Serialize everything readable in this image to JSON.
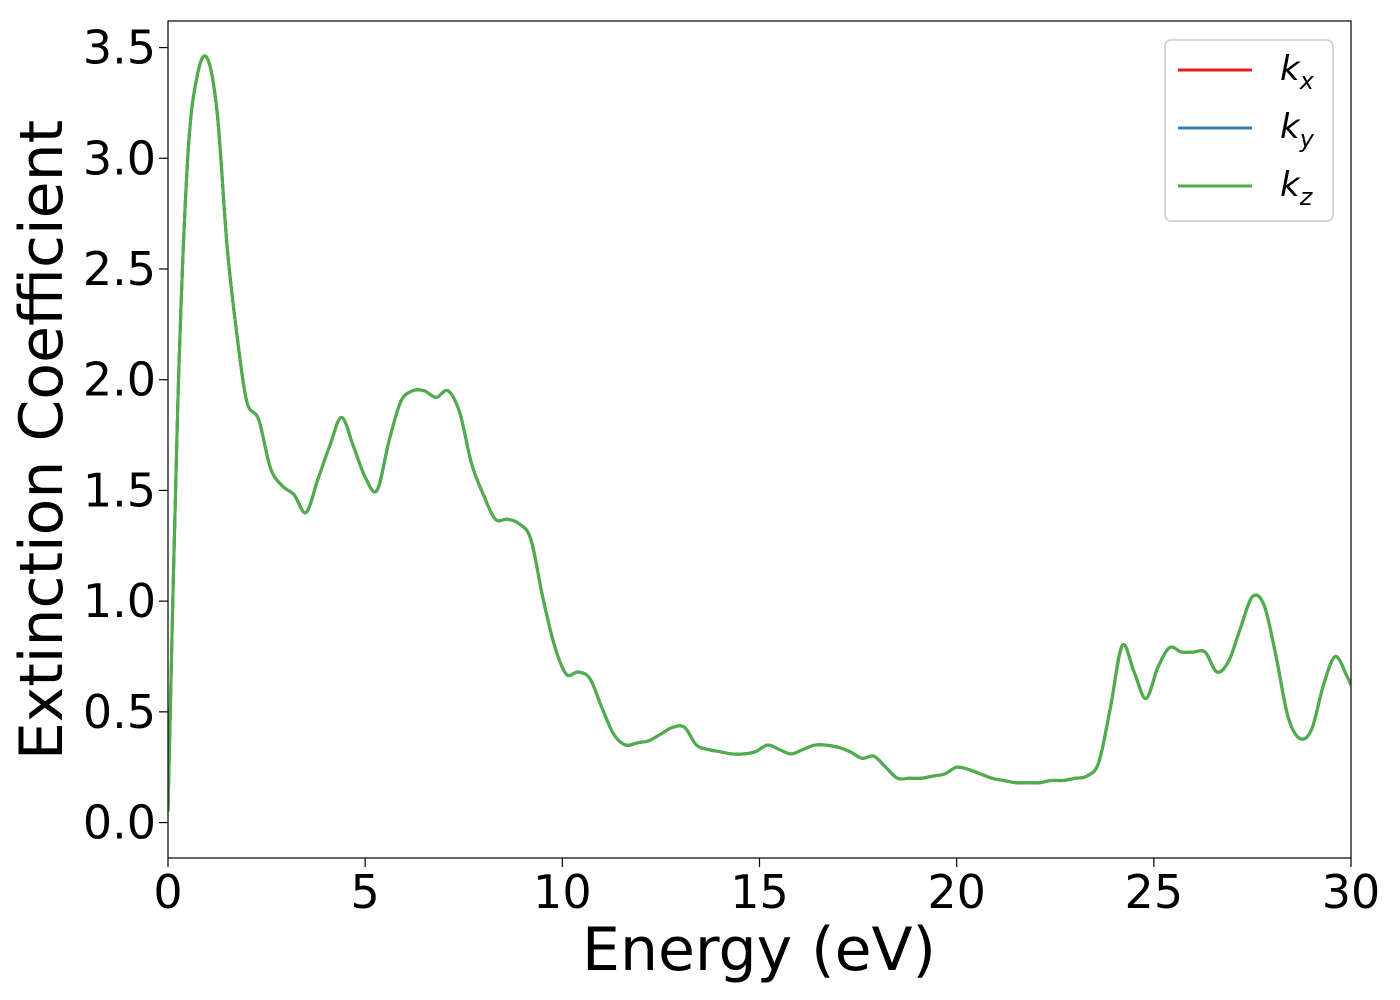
{
  "chart_data": {
    "type": "line",
    "xlabel": "Energy (eV)",
    "ylabel": "Extinction Coefficient",
    "xlim": [
      0,
      30
    ],
    "ylim": [
      -0.16,
      3.62
    ],
    "x_ticks": [
      "0",
      "5",
      "10",
      "15",
      "20",
      "25",
      "30"
    ],
    "y_ticks": [
      "0.0",
      "0.5",
      "1.0",
      "1.5",
      "2.0",
      "2.5",
      "3.0",
      "3.5"
    ],
    "grid": false,
    "legend_position": "top-right",
    "x": [
      0,
      0.25,
      0.5,
      0.75,
      1.0,
      1.25,
      1.5,
      1.75,
      2.0,
      2.3,
      2.6,
      2.9,
      3.2,
      3.5,
      3.8,
      4.1,
      4.4,
      4.7,
      5.0,
      5.3,
      5.6,
      5.9,
      6.2,
      6.5,
      6.8,
      7.1,
      7.4,
      7.7,
      8.0,
      8.3,
      8.6,
      8.9,
      9.2,
      9.5,
      9.8,
      10.1,
      10.4,
      10.7,
      11.0,
      11.3,
      11.6,
      11.9,
      12.2,
      12.5,
      12.8,
      13.1,
      13.4,
      13.7,
      14.0,
      14.3,
      14.6,
      14.9,
      15.2,
      15.5,
      15.8,
      16.1,
      16.4,
      16.7,
      17.0,
      17.3,
      17.6,
      17.9,
      18.2,
      18.5,
      18.8,
      19.1,
      19.4,
      19.7,
      20.0,
      20.3,
      20.6,
      20.9,
      21.2,
      21.5,
      21.8,
      22.1,
      22.4,
      22.7,
      23.0,
      23.3,
      23.6,
      23.9,
      24.2,
      24.5,
      24.8,
      25.1,
      25.4,
      25.7,
      26.0,
      26.3,
      26.6,
      26.9,
      27.2,
      27.5,
      27.8,
      28.1,
      28.4,
      28.7,
      29.0,
      29.3,
      29.6,
      29.9,
      30.0
    ],
    "series": [
      {
        "name": "k_x",
        "color": "#e41a1c",
        "values": [
          0.05,
          1.9,
          3.0,
          3.38,
          3.45,
          3.2,
          2.6,
          2.2,
          1.9,
          1.82,
          1.6,
          1.52,
          1.48,
          1.4,
          1.55,
          1.7,
          1.83,
          1.7,
          1.56,
          1.5,
          1.72,
          1.9,
          1.95,
          1.95,
          1.92,
          1.95,
          1.85,
          1.62,
          1.48,
          1.37,
          1.37,
          1.35,
          1.28,
          1.02,
          0.8,
          0.67,
          0.68,
          0.65,
          0.52,
          0.4,
          0.35,
          0.36,
          0.37,
          0.4,
          0.43,
          0.43,
          0.35,
          0.33,
          0.32,
          0.31,
          0.31,
          0.32,
          0.35,
          0.33,
          0.31,
          0.33,
          0.35,
          0.35,
          0.34,
          0.32,
          0.29,
          0.3,
          0.25,
          0.2,
          0.2,
          0.2,
          0.21,
          0.22,
          0.25,
          0.24,
          0.22,
          0.2,
          0.19,
          0.18,
          0.18,
          0.18,
          0.19,
          0.19,
          0.2,
          0.21,
          0.27,
          0.52,
          0.8,
          0.68,
          0.56,
          0.7,
          0.79,
          0.77,
          0.77,
          0.77,
          0.68,
          0.73,
          0.88,
          1.02,
          0.98,
          0.75,
          0.48,
          0.38,
          0.42,
          0.62,
          0.75,
          0.66,
          0.62
        ]
      },
      {
        "name": "k_y",
        "color": "#377eb8",
        "values": [
          0.05,
          1.9,
          3.0,
          3.38,
          3.45,
          3.2,
          2.6,
          2.2,
          1.9,
          1.82,
          1.6,
          1.52,
          1.48,
          1.4,
          1.55,
          1.7,
          1.83,
          1.7,
          1.56,
          1.5,
          1.72,
          1.9,
          1.95,
          1.95,
          1.92,
          1.95,
          1.85,
          1.62,
          1.48,
          1.37,
          1.37,
          1.35,
          1.28,
          1.02,
          0.8,
          0.67,
          0.68,
          0.65,
          0.52,
          0.4,
          0.35,
          0.36,
          0.37,
          0.4,
          0.43,
          0.43,
          0.35,
          0.33,
          0.32,
          0.31,
          0.31,
          0.32,
          0.35,
          0.33,
          0.31,
          0.33,
          0.35,
          0.35,
          0.34,
          0.32,
          0.29,
          0.3,
          0.25,
          0.2,
          0.2,
          0.2,
          0.21,
          0.22,
          0.25,
          0.24,
          0.22,
          0.2,
          0.19,
          0.18,
          0.18,
          0.18,
          0.19,
          0.19,
          0.2,
          0.21,
          0.27,
          0.52,
          0.8,
          0.68,
          0.56,
          0.7,
          0.79,
          0.77,
          0.77,
          0.77,
          0.68,
          0.73,
          0.88,
          1.02,
          0.98,
          0.75,
          0.48,
          0.38,
          0.42,
          0.62,
          0.75,
          0.66,
          0.62
        ]
      },
      {
        "name": "k_z",
        "color": "#4daf4a",
        "values": [
          0.05,
          1.9,
          3.0,
          3.38,
          3.45,
          3.2,
          2.6,
          2.2,
          1.9,
          1.82,
          1.6,
          1.52,
          1.48,
          1.4,
          1.55,
          1.7,
          1.83,
          1.7,
          1.56,
          1.5,
          1.72,
          1.9,
          1.95,
          1.95,
          1.92,
          1.95,
          1.85,
          1.62,
          1.48,
          1.37,
          1.37,
          1.35,
          1.28,
          1.02,
          0.8,
          0.67,
          0.68,
          0.65,
          0.52,
          0.4,
          0.35,
          0.36,
          0.37,
          0.4,
          0.43,
          0.43,
          0.35,
          0.33,
          0.32,
          0.31,
          0.31,
          0.32,
          0.35,
          0.33,
          0.31,
          0.33,
          0.35,
          0.35,
          0.34,
          0.32,
          0.29,
          0.3,
          0.25,
          0.2,
          0.2,
          0.2,
          0.21,
          0.22,
          0.25,
          0.24,
          0.22,
          0.2,
          0.19,
          0.18,
          0.18,
          0.18,
          0.19,
          0.19,
          0.2,
          0.21,
          0.27,
          0.52,
          0.8,
          0.68,
          0.56,
          0.7,
          0.79,
          0.77,
          0.77,
          0.77,
          0.68,
          0.73,
          0.88,
          1.02,
          0.98,
          0.75,
          0.48,
          0.38,
          0.42,
          0.62,
          0.75,
          0.66,
          0.62
        ]
      }
    ],
    "legend": [
      {
        "base": "k",
        "sub": "x",
        "color": "#e41a1c"
      },
      {
        "base": "k",
        "sub": "y",
        "color": "#377eb8"
      },
      {
        "base": "k",
        "sub": "z",
        "color": "#4daf4a"
      }
    ]
  }
}
